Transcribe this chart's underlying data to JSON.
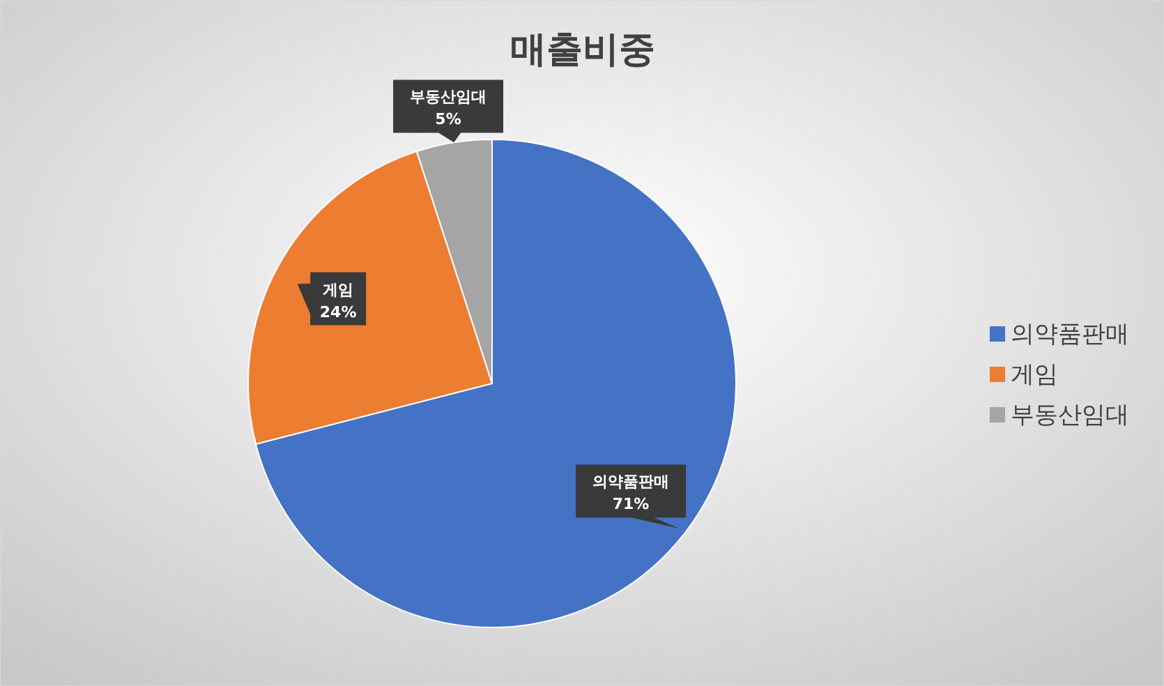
{
  "chart_data": {
    "type": "pie",
    "title": "매출비중",
    "categories": [
      "의약품판매",
      "게임",
      "부동산임대"
    ],
    "values": [
      71,
      24,
      5
    ],
    "value_labels": [
      "71%",
      "24%",
      "5%"
    ],
    "colors": [
      "#4472c4",
      "#ed7d31",
      "#a5a5a5"
    ],
    "legend": "right"
  }
}
